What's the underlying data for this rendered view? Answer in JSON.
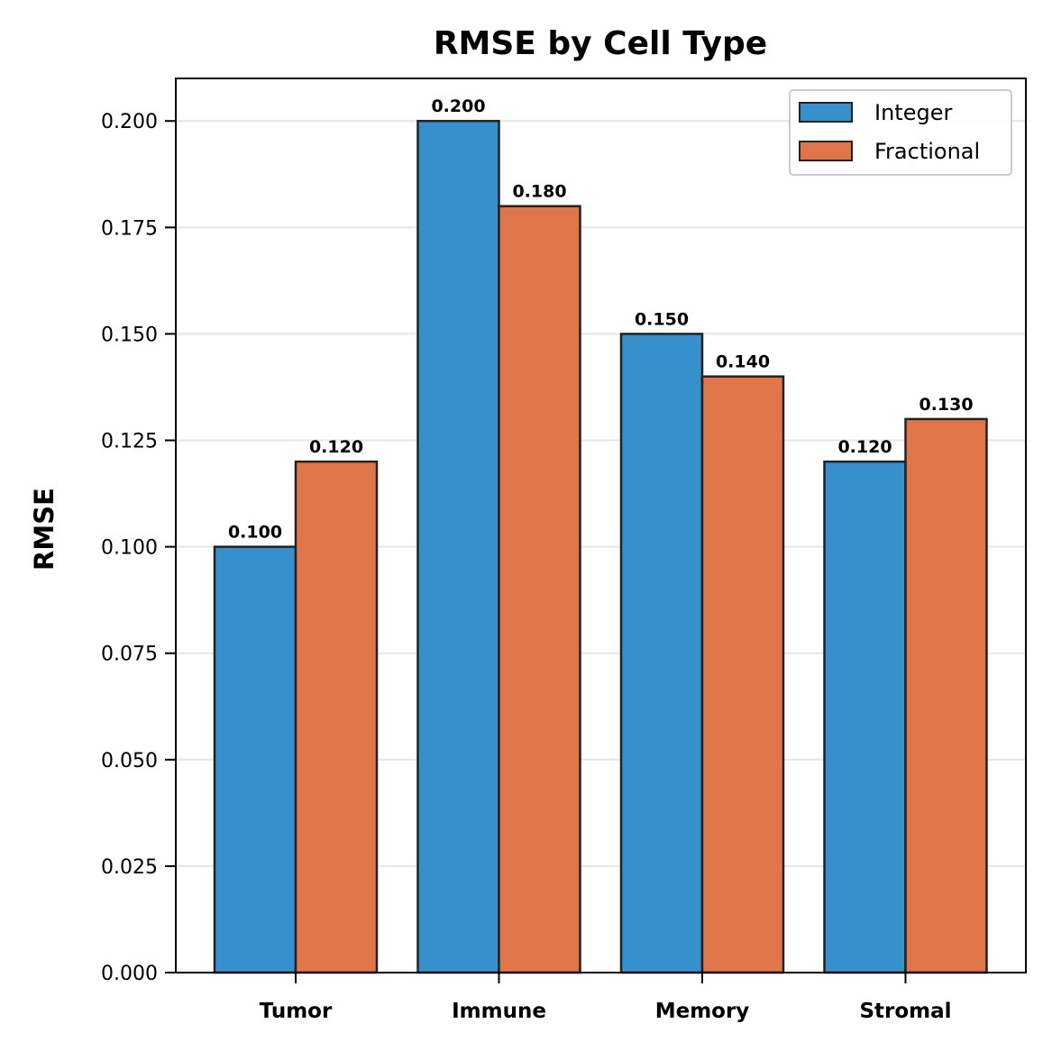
{
  "chart_data": {
    "type": "bar",
    "title": "RMSE by Cell Type",
    "xlabel": "",
    "ylabel": "RMSE",
    "categories": [
      "Tumor",
      "Immune",
      "Memory",
      "Stromal"
    ],
    "series": [
      {
        "name": "Integer",
        "color": "#3590CC",
        "values": [
          0.1,
          0.2,
          0.15,
          0.12
        ],
        "labels": [
          "0.100",
          "0.200",
          "0.150",
          "0.120"
        ]
      },
      {
        "name": "Fractional",
        "color": "#E0754A",
        "values": [
          0.12,
          0.18,
          0.14,
          0.13
        ],
        "labels": [
          "0.120",
          "0.180",
          "0.140",
          "0.130"
        ]
      }
    ],
    "ylim": [
      0,
      0.21
    ],
    "yticks": [
      0,
      0.025,
      0.05,
      0.075,
      0.1,
      0.125,
      0.15,
      0.175,
      0.2
    ],
    "ytick_labels": [
      "0.000",
      "0.025",
      "0.050",
      "0.075",
      "0.100",
      "0.125",
      "0.150",
      "0.175",
      "0.200"
    ],
    "grid": "y",
    "legend_position": "top-right"
  }
}
